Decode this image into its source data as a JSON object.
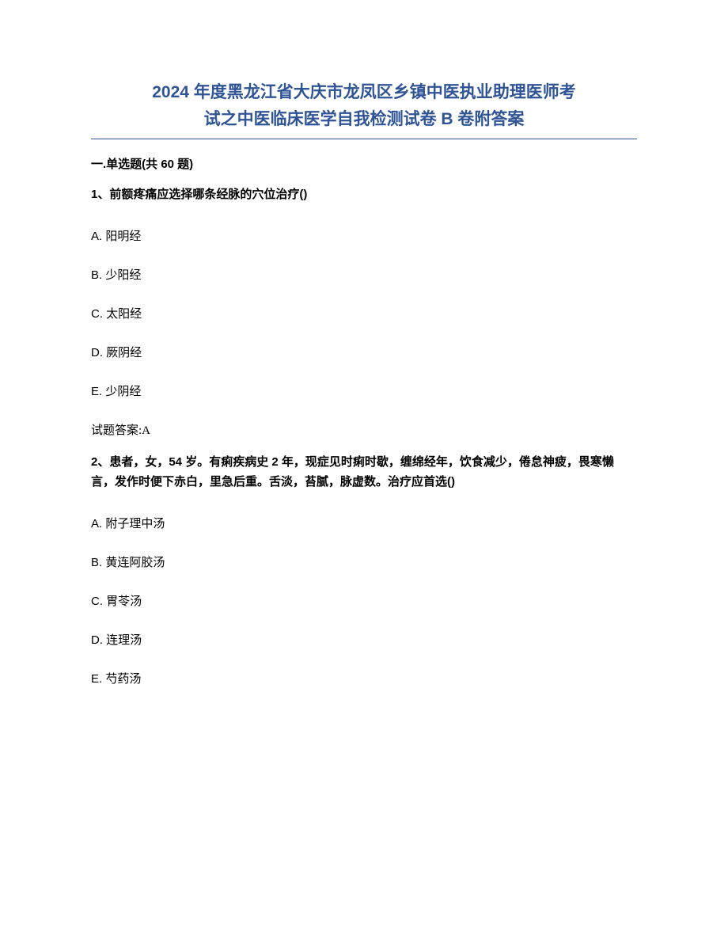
{
  "document": {
    "title_line1": "2024 年度黑龙江省大庆市龙凤区乡镇中医执业助理医师考",
    "title_line2": "试之中医临床医学自我检测试卷 B 卷附答案",
    "section_header": "一.单选题(共 60 题)",
    "title_color": "#2e5496",
    "title_fontsize": 21,
    "body_fontsize": 15,
    "background_color": "#ffffff",
    "text_color": "#000000"
  },
  "questions": [
    {
      "stem": "1、前额疼痛应选择哪条经脉的穴位治疗()",
      "options": [
        "A. 阳明经",
        "B. 少阳经",
        "C. 太阳经",
        "D. 厥阴经",
        "E. 少阴经"
      ],
      "answer": "试题答案:A"
    },
    {
      "stem": "2、患者，女，54 岁。有痢疾病史 2 年，现症见时痢时歇，缠绵经年，饮食减少，倦怠神疲，畏寒懒言，发作时便下赤白，里急后重。舌淡，苔腻，脉虚数。治疗应首选()",
      "options": [
        "A. 附子理中汤",
        "B. 黄连阿胶汤",
        "C. 胃苓汤",
        "D. 连理汤",
        "E. 芍药汤"
      ],
      "answer": ""
    }
  ]
}
